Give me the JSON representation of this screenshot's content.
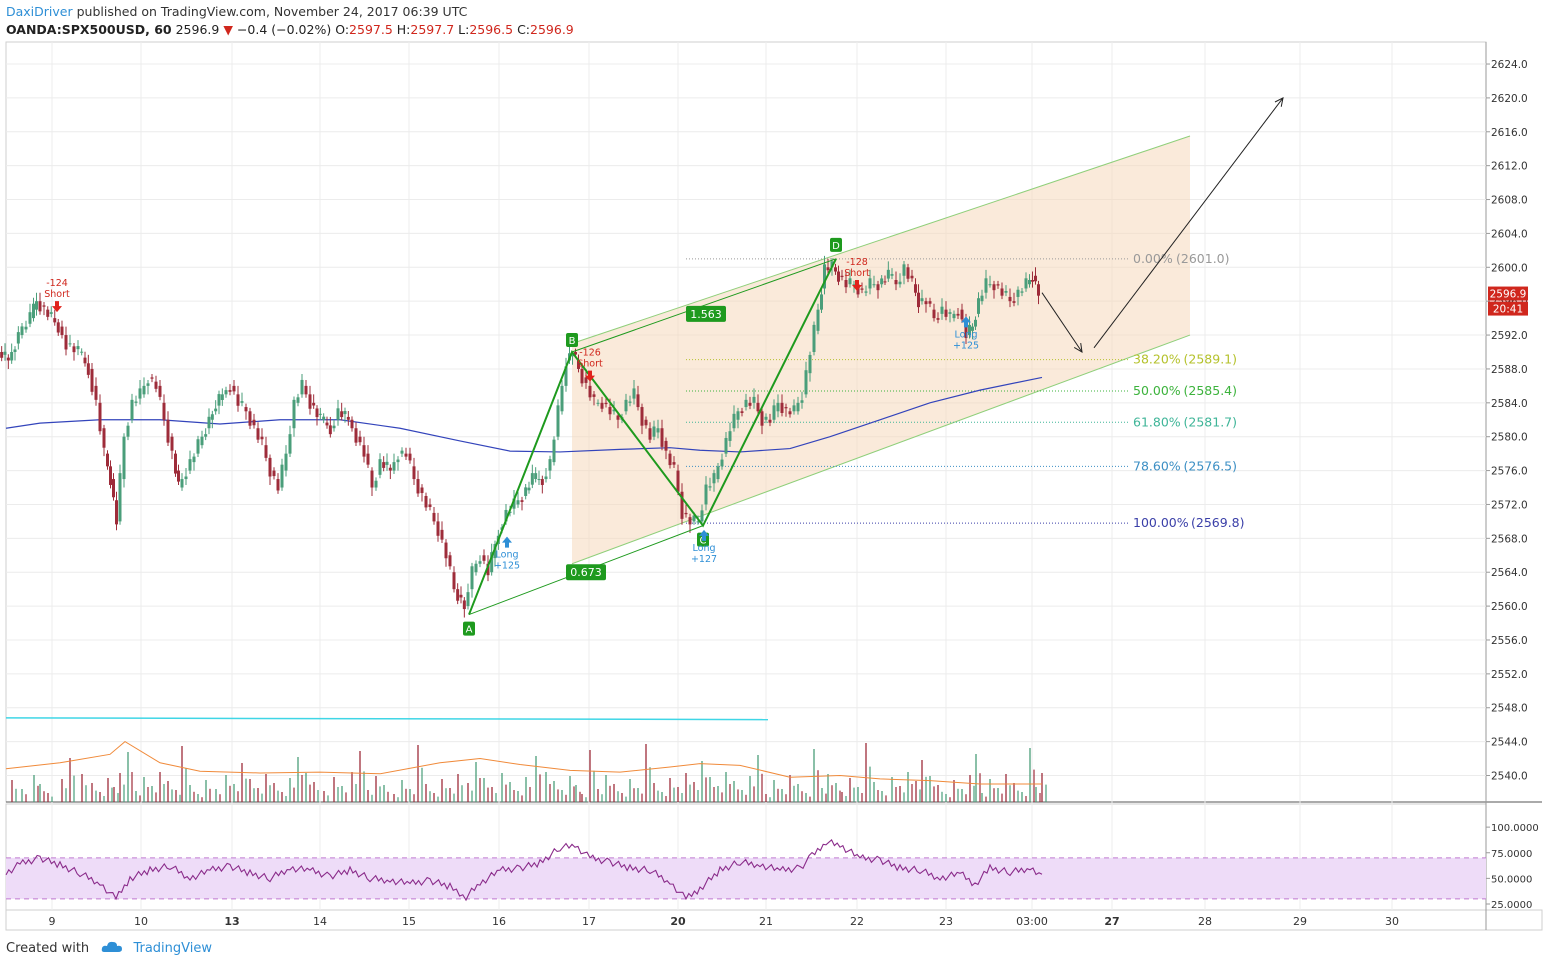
{
  "header": {
    "author": "DaxiDriver",
    "published": " published on TradingView.com, November 24, 2017 06:39 UTC",
    "symbol": "OANDA:SPX500USD, 60",
    "last": "2596.9",
    "change": "−0.4 (−0.02%)",
    "o_label": "O:",
    "o_value": "2597.5",
    "h_label": "H:",
    "h_value": "2597.7",
    "l_label": "L:",
    "l_value": "2596.5",
    "c_label": "C:",
    "c_value": "2596.9"
  },
  "footer": {
    "created_with": "Created with",
    "brand": "TradingView",
    "icon": "tradingview-cloud-icon"
  },
  "colors": {
    "up": "#4a9e7a",
    "down": "#9e2c3a",
    "pattern": "#1e9a1e",
    "ma": "#3344bb",
    "arrow": "#222222",
    "channel": "#f5d6b6",
    "rsi_band": "#eedcf8",
    "rsi_line": "#8a2b8a",
    "vol_ma": "#f08a3a",
    "vol_line": "#3fd6e6"
  },
  "chart_data": {
    "type": "candlestick",
    "ylim": [
      2552,
      2626
    ],
    "price_ticks": [
      "2624.0",
      "2620.0",
      "2616.0",
      "2612.0",
      "2608.0",
      "2604.0",
      "2600.0",
      "2596.0",
      "2592.0",
      "2588.0",
      "2584.0",
      "2580.0",
      "2576.0",
      "2572.0",
      "2568.0",
      "2564.0",
      "2560.0",
      "2556.0",
      "2552.0",
      "2548.0",
      "2544.0",
      "2540.0"
    ],
    "x_ticks": [
      "9",
      "10",
      "13",
      "14",
      "15",
      "16",
      "17",
      "20",
      "21",
      "22",
      "23",
      "03:00",
      "27",
      "28",
      "29",
      "30"
    ],
    "x_ticks_bold": [
      "13",
      "20",
      "27"
    ],
    "current_price": "2596.9",
    "countdown": "20:41",
    "close_path": [
      [
        0,
        2590
      ],
      [
        10,
        2589
      ],
      [
        20,
        2592
      ],
      [
        32,
        2594
      ],
      [
        38,
        2596
      ],
      [
        46,
        2595
      ],
      [
        60,
        2593
      ],
      [
        68,
        2591
      ],
      [
        80,
        2590
      ],
      [
        90,
        2588
      ],
      [
        98,
        2584
      ],
      [
        106,
        2578
      ],
      [
        112,
        2575
      ],
      [
        118,
        2570
      ],
      [
        126,
        2580
      ],
      [
        134,
        2584
      ],
      [
        142,
        2585
      ],
      [
        150,
        2587
      ],
      [
        158,
        2586
      ],
      [
        166,
        2582
      ],
      [
        174,
        2578
      ],
      [
        180,
        2574
      ],
      [
        188,
        2576
      ],
      [
        196,
        2578
      ],
      [
        204,
        2580
      ],
      [
        214,
        2583
      ],
      [
        224,
        2585
      ],
      [
        232,
        2586
      ],
      [
        240,
        2584
      ],
      [
        248,
        2583
      ],
      [
        256,
        2581
      ],
      [
        264,
        2579
      ],
      [
        272,
        2576
      ],
      [
        280,
        2574
      ],
      [
        288,
        2578
      ],
      [
        296,
        2584
      ],
      [
        304,
        2586
      ],
      [
        312,
        2584
      ],
      [
        322,
        2582
      ],
      [
        332,
        2581
      ],
      [
        340,
        2583
      ],
      [
        350,
        2582
      ],
      [
        358,
        2580
      ],
      [
        366,
        2578
      ],
      [
        374,
        2574
      ],
      [
        382,
        2577
      ],
      [
        392,
        2576
      ],
      [
        400,
        2578
      ],
      [
        408,
        2578
      ],
      [
        416,
        2575
      ],
      [
        424,
        2573
      ],
      [
        432,
        2571
      ],
      [
        440,
        2569
      ],
      [
        448,
        2566
      ],
      [
        456,
        2562
      ],
      [
        466,
        2560
      ],
      [
        474,
        2564
      ],
      [
        482,
        2566
      ],
      [
        490,
        2564
      ],
      [
        500,
        2569
      ],
      [
        508,
        2571
      ],
      [
        516,
        2572
      ],
      [
        524,
        2573
      ],
      [
        534,
        2575
      ],
      [
        544,
        2575
      ],
      [
        552,
        2577
      ],
      [
        560,
        2583
      ],
      [
        568,
        2589
      ],
      [
        574,
        2590
      ],
      [
        580,
        2588
      ],
      [
        588,
        2586
      ],
      [
        596,
        2584
      ],
      [
        604,
        2584
      ],
      [
        612,
        2583
      ],
      [
        620,
        2582
      ],
      [
        628,
        2584
      ],
      [
        636,
        2585
      ],
      [
        644,
        2582
      ],
      [
        652,
        2580
      ],
      [
        660,
        2581
      ],
      [
        668,
        2578
      ],
      [
        676,
        2576
      ],
      [
        684,
        2571
      ],
      [
        692,
        2570
      ],
      [
        700,
        2570
      ],
      [
        708,
        2574
      ],
      [
        716,
        2575
      ],
      [
        724,
        2578
      ],
      [
        732,
        2581
      ],
      [
        740,
        2583
      ],
      [
        748,
        2584
      ],
      [
        756,
        2584
      ],
      [
        764,
        2582
      ],
      [
        772,
        2582
      ],
      [
        780,
        2584
      ],
      [
        788,
        2583
      ],
      [
        796,
        2583
      ],
      [
        804,
        2585
      ],
      [
        812,
        2590
      ],
      [
        820,
        2595
      ],
      [
        826,
        2600
      ],
      [
        834,
        2600
      ],
      [
        840,
        2599
      ],
      [
        848,
        2598
      ],
      [
        856,
        2598
      ],
      [
        864,
        2597
      ],
      [
        872,
        2598
      ],
      [
        880,
        2598
      ],
      [
        890,
        2599
      ],
      [
        898,
        2598
      ],
      [
        906,
        2600
      ],
      [
        914,
        2598
      ],
      [
        920,
        2596
      ],
      [
        928,
        2596
      ],
      [
        936,
        2594
      ],
      [
        944,
        2595
      ],
      [
        952,
        2594
      ],
      [
        960,
        2595
      ],
      [
        968,
        2592
      ],
      [
        974,
        2593
      ],
      [
        980,
        2596
      ],
      [
        988,
        2598
      ],
      [
        996,
        2598
      ],
      [
        1004,
        2597
      ],
      [
        1012,
        2596
      ],
      [
        1020,
        2597
      ],
      [
        1028,
        2598
      ],
      [
        1034,
        2599
      ],
      [
        1040,
        2597
      ]
    ],
    "ma_path": [
      [
        6,
        2581
      ],
      [
        40,
        2581.6
      ],
      [
        100,
        2582
      ],
      [
        160,
        2582
      ],
      [
        220,
        2581.5
      ],
      [
        280,
        2582
      ],
      [
        340,
        2582
      ],
      [
        400,
        2581
      ],
      [
        460,
        2579.5
      ],
      [
        510,
        2578.3
      ],
      [
        560,
        2578.2
      ],
      [
        620,
        2578.5
      ],
      [
        670,
        2578.7
      ],
      [
        700,
        2578.4
      ],
      [
        740,
        2578.2
      ],
      [
        790,
        2578.6
      ],
      [
        830,
        2580
      ],
      [
        880,
        2582
      ],
      [
        930,
        2584
      ],
      [
        980,
        2585.5
      ],
      [
        1042,
        2587
      ]
    ],
    "harmonic_pattern": {
      "points": [
        {
          "label": "A",
          "x": 469,
          "price": 2559
        },
        {
          "label": "B",
          "x": 572,
          "price": 2590
        },
        {
          "label": "C",
          "x": 703,
          "price": 2569.5
        },
        {
          "label": "D",
          "x": 836,
          "price": 2601
        }
      ],
      "ratios": [
        {
          "text": "1.563",
          "x": 706,
          "price": 2594.5
        },
        {
          "text": "0.673",
          "x": 586,
          "price": 2564
        }
      ]
    },
    "fibonacci": [
      {
        "level": "0.00%",
        "price": "2601.0",
        "value": 2601.0,
        "color": "#999999"
      },
      {
        "level": "38.20%",
        "price": "2589.1",
        "value": 2589.1,
        "color": "#b5c22c"
      },
      {
        "level": "50.00%",
        "price": "2585.4",
        "value": 2585.4,
        "color": "#3db33d"
      },
      {
        "level": "61.80%",
        "price": "2581.7",
        "value": 2581.7,
        "color": "#3fb598"
      },
      {
        "level": "78.60%",
        "price": "2576.5",
        "value": 2576.5,
        "color": "#3c8fc4"
      },
      {
        "level": "100.00%",
        "price": "2569.8",
        "value": 2569.8,
        "color": "#3a3fa8"
      }
    ],
    "channel": {
      "upper": [
        [
          572,
          2591.0
        ],
        [
          1190,
          2615.5
        ]
      ],
      "lower": [
        [
          572,
          2565
        ],
        [
          1190,
          2592
        ]
      ]
    },
    "projection_arrow": [
      [
        1042,
        2597
      ],
      [
        1082,
        2590
      ],
      [
        1094,
        2590.5
      ],
      [
        1283,
        2620
      ]
    ],
    "signals": [
      {
        "kind": "short",
        "x": 57,
        "price": 2596,
        "value": "-124",
        "label": "Short"
      },
      {
        "kind": "short",
        "x": 590,
        "price": 2587.8,
        "value": "-126",
        "label": "Short"
      },
      {
        "kind": "short",
        "x": 857,
        "price": 2598.5,
        "value": "-128",
        "label": "Short"
      },
      {
        "kind": "long",
        "x": 507,
        "price": 2568.2,
        "value": "+125",
        "label": "Long"
      },
      {
        "kind": "long",
        "x": 704,
        "price": 2569,
        "value": "+127",
        "label": "Long"
      },
      {
        "kind": "long",
        "x": 966,
        "price": 2594.2,
        "value": "+125",
        "label": "Long"
      }
    ],
    "rsi": {
      "ticks": [
        "100.0000",
        "75.0000",
        "50.0000",
        "25.0000"
      ],
      "band": [
        30,
        70
      ],
      "values": [
        [
          6,
          55
        ],
        [
          20,
          64
        ],
        [
          40,
          70
        ],
        [
          60,
          63
        ],
        [
          80,
          55
        ],
        [
          100,
          45
        ],
        [
          116,
          30
        ],
        [
          130,
          50
        ],
        [
          150,
          58
        ],
        [
          170,
          62
        ],
        [
          190,
          50
        ],
        [
          210,
          58
        ],
        [
          230,
          62
        ],
        [
          250,
          55
        ],
        [
          270,
          50
        ],
        [
          290,
          60
        ],
        [
          310,
          58
        ],
        [
          330,
          52
        ],
        [
          350,
          58
        ],
        [
          370,
          50
        ],
        [
          390,
          48
        ],
        [
          410,
          45
        ],
        [
          430,
          48
        ],
        [
          450,
          42
        ],
        [
          466,
          32
        ],
        [
          480,
          45
        ],
        [
          500,
          58
        ],
        [
          520,
          60
        ],
        [
          540,
          65
        ],
        [
          560,
          80
        ],
        [
          575,
          82
        ],
        [
          590,
          70
        ],
        [
          610,
          66
        ],
        [
          630,
          60
        ],
        [
          650,
          58
        ],
        [
          670,
          46
        ],
        [
          686,
          30
        ],
        [
          700,
          40
        ],
        [
          720,
          58
        ],
        [
          740,
          66
        ],
        [
          760,
          63
        ],
        [
          780,
          58
        ],
        [
          800,
          60
        ],
        [
          812,
          72
        ],
        [
          826,
          86
        ],
        [
          840,
          82
        ],
        [
          860,
          70
        ],
        [
          880,
          68
        ],
        [
          900,
          60
        ],
        [
          920,
          58
        ],
        [
          940,
          50
        ],
        [
          960,
          55
        ],
        [
          975,
          44
        ],
        [
          990,
          60
        ],
        [
          1010,
          56
        ],
        [
          1030,
          60
        ],
        [
          1042,
          54
        ]
      ]
    },
    "volume": {
      "ma_line": [
        [
          6,
          2540.8
        ],
        [
          60,
          2541.5
        ],
        [
          110,
          2542.5
        ],
        [
          125,
          2544
        ],
        [
          160,
          2541.5
        ],
        [
          200,
          2540.5
        ],
        [
          260,
          2540.3
        ],
        [
          320,
          2540.4
        ],
        [
          380,
          2540.2
        ],
        [
          440,
          2541.5
        ],
        [
          480,
          2542
        ],
        [
          520,
          2541.3
        ],
        [
          570,
          2540.6
        ],
        [
          620,
          2540.4
        ],
        [
          670,
          2541
        ],
        [
          700,
          2541.4
        ],
        [
          740,
          2541.2
        ],
        [
          790,
          2539.8
        ],
        [
          840,
          2540
        ],
        [
          880,
          2539.6
        ],
        [
          930,
          2539.4
        ],
        [
          980,
          2539
        ],
        [
          1042,
          2539
        ]
      ],
      "level_line": [
        [
          6,
          2546.8
        ],
        [
          768,
          2546.6
        ]
      ]
    }
  }
}
